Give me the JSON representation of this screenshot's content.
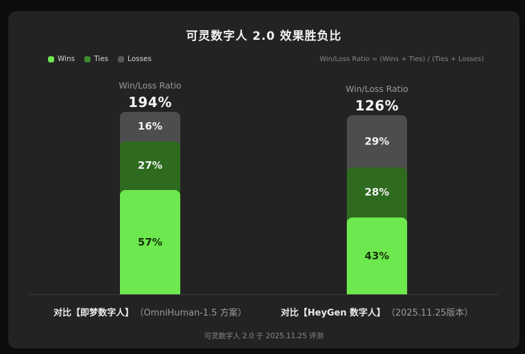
{
  "title": "可灵数字人 2.0 效果胜负比",
  "formula": "Win/Loss Ratio = (Wins + Ties) / (Ties + Losses)",
  "footer": "可灵数字人 2.0 于 2025.11.25 评测",
  "colors": {
    "background": "#0c0c0c",
    "card": "#232323",
    "wins": "#6ee84f",
    "ties_segment": "#2e6b1f",
    "losses_segment": "#4d4d4d",
    "ties_legend": "#3f8c2b",
    "losses_legend": "#585858",
    "axis_line": "#3a3a3a"
  },
  "legend": {
    "items": [
      {
        "label": "Wins",
        "color": "#6ee84f"
      },
      {
        "label": "Ties",
        "color": "#3f8c2b"
      },
      {
        "label": "Losses",
        "color": "#585858"
      }
    ]
  },
  "chart_data": {
    "type": "bar",
    "subtype": "stacked-percent",
    "title": "可灵数字人 2.0 效果胜负比",
    "annotation": "Win/Loss Ratio = (Wins + Ties) / (Ties + Losses)",
    "legend_position": "top-left",
    "grid": false,
    "ylim": [
      0,
      100
    ],
    "categories": [
      "对比【即梦数字人】（OmniHuman-1.5 方案）",
      "对比【HeyGen 数字人】（2025.11.25版本）"
    ],
    "series": [
      {
        "name": "Wins",
        "color": "#6ee84f",
        "label_color": "#16330a",
        "values": [
          57,
          43
        ]
      },
      {
        "name": "Ties",
        "color": "#2e6b1f",
        "label_color": "#f2f2f2",
        "values": [
          27,
          28
        ]
      },
      {
        "name": "Losses",
        "color": "#4d4d4d",
        "label_color": "#f2f2f2",
        "values": [
          16,
          29
        ]
      }
    ],
    "columns": [
      {
        "ratio_title": "Win/Loss Ratio",
        "ratio": "194%",
        "label_main": "对比【即梦数字人】",
        "label_sub": "（OmniHuman-1.5 方案）"
      },
      {
        "ratio_title": "Win/Loss Ratio",
        "ratio": "126%",
        "label_main": "对比【HeyGen 数字人】",
        "label_sub": "（2025.11.25版本）"
      }
    ]
  }
}
